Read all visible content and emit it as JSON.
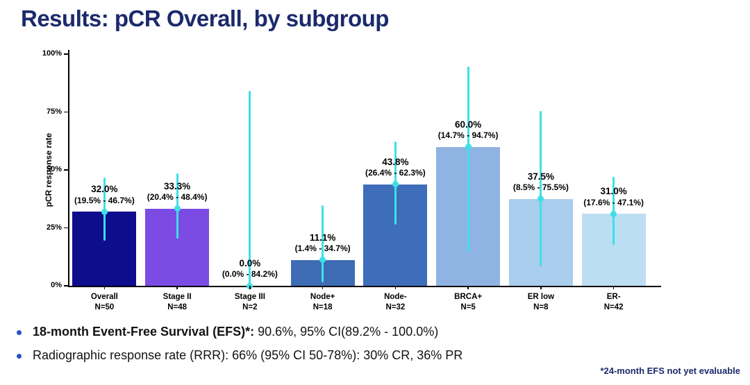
{
  "title": "Results: pCR Overall, by subgroup",
  "chart_data": {
    "type": "bar",
    "title": "Results: pCR Overall, by subgroup",
    "ylabel": "pCR response rate",
    "xlabel": "",
    "ylim": [
      0,
      100
    ],
    "yticks": [
      0,
      25,
      50,
      75,
      100
    ],
    "ytick_labels": [
      "0%",
      "25%",
      "50%",
      "75%",
      "100%"
    ],
    "grid": false,
    "legend": "none",
    "error_bar_color": "#3EE0E8",
    "groups": [
      {
        "label": "Overall",
        "n": "N=50",
        "value": 32.0,
        "value_label": "32.0%",
        "ci_low": 19.5,
        "ci_high": 46.7,
        "ci_label": "(19.5% - 46.7%)",
        "color": "#0D0D8E"
      },
      {
        "label": "Stage II",
        "n": "N=48",
        "value": 33.3,
        "value_label": "33.3%",
        "ci_low": 20.4,
        "ci_high": 48.4,
        "ci_label": "(20.4% - 48.4%)",
        "color": "#7B4BE4"
      },
      {
        "label": "Stage III",
        "n": "N=2",
        "value": 0.0,
        "value_label": "0.0%",
        "ci_low": 0.0,
        "ci_high": 84.2,
        "ci_label": "(0.0% - 84.2%)",
        "color": "#4A6FB0"
      },
      {
        "label": "Node+",
        "n": "N=18",
        "value": 11.1,
        "value_label": "11.1%",
        "ci_low": 1.4,
        "ci_high": 34.7,
        "ci_label": "(1.4% - 34.7%)",
        "color": "#3E6CB4"
      },
      {
        "label": "Node-",
        "n": "N=32",
        "value": 43.8,
        "value_label": "43.8%",
        "ci_low": 26.4,
        "ci_high": 62.3,
        "ci_label": "(26.4% - 62.3%)",
        "color": "#3E6DB9"
      },
      {
        "label": "BRCA+",
        "n": "N=5",
        "value": 60.0,
        "value_label": "60.0%",
        "ci_low": 14.7,
        "ci_high": 94.7,
        "ci_label": "(14.7% - 94.7%)",
        "color": "#8FB4E3"
      },
      {
        "label": "ER low",
        "n": "N=8",
        "value": 37.5,
        "value_label": "37.5%",
        "ci_low": 8.5,
        "ci_high": 75.5,
        "ci_label": "(8.5% - 75.5%)",
        "color": "#A9CDEC"
      },
      {
        "label": "ER-",
        "n": "N=42",
        "value": 31.0,
        "value_label": "31.0%",
        "ci_low": 17.6,
        "ci_high": 47.1,
        "ci_label": "(17.6% - 47.1%)",
        "color": "#BCDEF2"
      }
    ]
  },
  "bullets": [
    {
      "bold": "18-month Event-Free Survival (EFS)*:",
      "text": " 90.6%, 95% CI(89.2% - 100.0%)"
    },
    {
      "bold": "",
      "text": "Radiographic response rate (RRR): 66% (95% CI 50-78%): 30% CR, 36% PR"
    }
  ],
  "footnote": "*24-month EFS not yet evaluable",
  "colors": {
    "title": "#1B2A6B",
    "bullet_marker": "#2A52C4",
    "text": "#131313",
    "footnote": "#1B2A6B",
    "axis": "#000000"
  }
}
